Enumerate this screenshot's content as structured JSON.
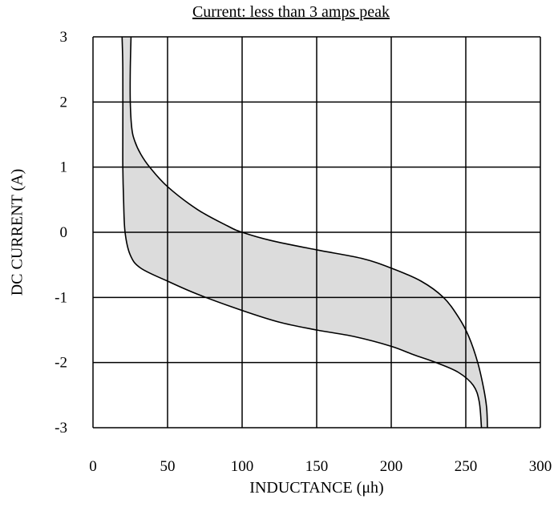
{
  "chart_data": {
    "type": "area",
    "title": "Current:  less than 3 amps peak",
    "xlabel": "INDUCTANCE (μh)",
    "ylabel": "DC CURRENT (A)",
    "xlim": [
      0,
      300
    ],
    "ylim": [
      -3,
      3
    ],
    "xticks": [
      "0",
      "50",
      "100",
      "150",
      "200",
      "250",
      "300"
    ],
    "yticks": [
      "3",
      "2",
      "1",
      "0",
      "-1",
      "-2",
      "-3"
    ],
    "grid": true,
    "fill_color": "#dcdcdc",
    "line_color": "#000000",
    "series": [
      {
        "values": [
          [
            25.5,
            3.0
          ],
          [
            25,
            2.5
          ],
          [
            25,
            2.0
          ],
          [
            26,
            1.6
          ],
          [
            28,
            1.4
          ],
          [
            32,
            1.2
          ],
          [
            38,
            1.0
          ],
          [
            50,
            0.7
          ],
          [
            70,
            0.35
          ],
          [
            90,
            0.1
          ],
          [
            100,
            0.0
          ],
          [
            120,
            -0.13
          ],
          [
            150,
            -0.27
          ],
          [
            180,
            -0.4
          ],
          [
            200,
            -0.55
          ],
          [
            220,
            -0.75
          ],
          [
            235,
            -1.0
          ],
          [
            245,
            -1.3
          ],
          [
            252,
            -1.6
          ],
          [
            258,
            -2.0
          ],
          [
            262,
            -2.4
          ],
          [
            264,
            -2.7
          ],
          [
            264.5,
            -3.0
          ]
        ]
      },
      {
        "values": [
          [
            19.5,
            3.0
          ],
          [
            20,
            2.5
          ],
          [
            20,
            1.5
          ],
          [
            20,
            1.0
          ],
          [
            20.5,
            0.5
          ],
          [
            21.5,
            0.0
          ],
          [
            25,
            -0.35
          ],
          [
            32,
            -0.55
          ],
          [
            50,
            -0.75
          ],
          [
            70,
            -0.95
          ],
          [
            100,
            -1.2
          ],
          [
            125,
            -1.38
          ],
          [
            150,
            -1.5
          ],
          [
            175,
            -1.6
          ],
          [
            200,
            -1.75
          ],
          [
            215,
            -1.88
          ],
          [
            230,
            -2.0
          ],
          [
            245,
            -2.15
          ],
          [
            255,
            -2.35
          ],
          [
            259,
            -2.6
          ],
          [
            260.5,
            -3.0
          ]
        ]
      }
    ]
  }
}
